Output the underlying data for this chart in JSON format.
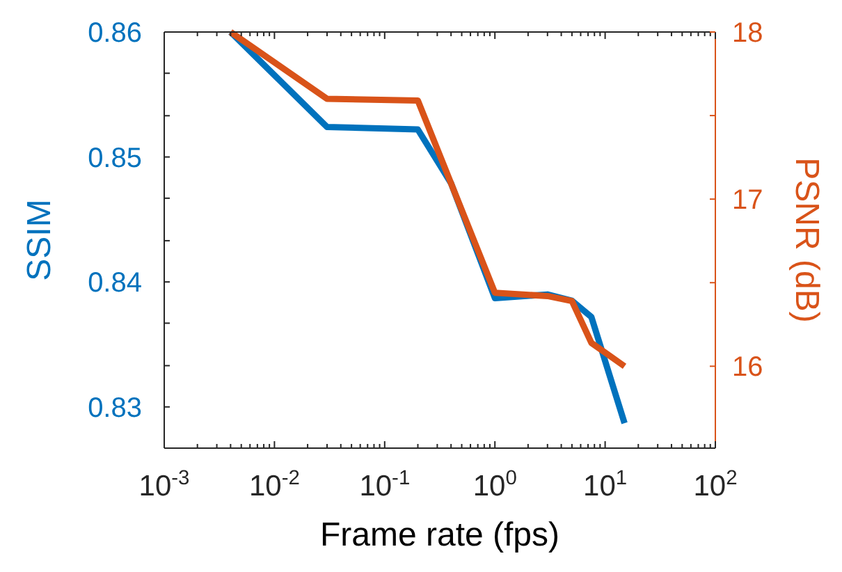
{
  "chart_data": {
    "type": "line",
    "xlabel": "Frame rate (fps)",
    "ylabel": "SSIM",
    "y2label": "PSNR (dB)",
    "log": "x",
    "xlim": [
      0.001,
      100
    ],
    "xticks": [
      {
        "value": 0.001,
        "label": "10$^{-3}$"
      },
      {
        "value": 0.002,
        "label": null
      },
      {
        "value": 0.003,
        "label": null
      },
      {
        "value": 0.004,
        "label": null
      },
      {
        "value": 0.005,
        "label": null
      },
      {
        "value": 0.006,
        "label": null
      },
      {
        "value": 0.007,
        "label": null
      },
      {
        "value": 0.008,
        "label": null
      },
      {
        "value": 0.009,
        "label": null
      },
      {
        "value": 0.01,
        "label": "10$^{-2}$"
      },
      {
        "value": 0.02,
        "label": null
      },
      {
        "value": 0.03,
        "label": null
      },
      {
        "value": 0.04,
        "label": null
      },
      {
        "value": 0.05,
        "label": null
      },
      {
        "value": 0.06,
        "label": null
      },
      {
        "value": 0.07,
        "label": null
      },
      {
        "value": 0.08,
        "label": null
      },
      {
        "value": 0.09,
        "label": null
      },
      {
        "value": 0.1,
        "label": "10$^{-1}$"
      },
      {
        "value": 0.2,
        "label": null
      },
      {
        "value": 0.3,
        "label": null
      },
      {
        "value": 0.4,
        "label": null
      },
      {
        "value": 0.5,
        "label": null
      },
      {
        "value": 0.6,
        "label": null
      },
      {
        "value": 0.7,
        "label": null
      },
      {
        "value": 0.8,
        "label": null
      },
      {
        "value": 0.9,
        "label": null
      },
      {
        "value": 1,
        "label": "10$^{0}$"
      },
      {
        "value": 2,
        "label": null
      },
      {
        "value": 3,
        "label": null
      },
      {
        "value": 4,
        "label": null
      },
      {
        "value": 5,
        "label": null
      },
      {
        "value": 6,
        "label": null
      },
      {
        "value": 7,
        "label": null
      },
      {
        "value": 8,
        "label": null
      },
      {
        "value": 9,
        "label": null
      },
      {
        "value": 10,
        "label": "10$^{1}$"
      },
      {
        "value": 20,
        "label": null
      },
      {
        "value": 30,
        "label": null
      },
      {
        "value": 40,
        "label": null
      },
      {
        "value": 50,
        "label": null
      },
      {
        "value": 60,
        "label": null
      },
      {
        "value": 70,
        "label": null
      },
      {
        "value": 80,
        "label": null
      },
      {
        "value": 90,
        "label": null
      },
      {
        "value": 100,
        "label": "10$^{2}$"
      }
    ],
    "ylim": [
      0.8267,
      0.86
    ],
    "yticks": [
      {
        "value": 0.8267,
        "label": null
      },
      {
        "value": 0.83,
        "label": "0.83"
      },
      {
        "value": 0.8333,
        "label": null
      },
      {
        "value": 0.8367,
        "label": null
      },
      {
        "value": 0.84,
        "label": "0.84"
      },
      {
        "value": 0.8433,
        "label": null
      },
      {
        "value": 0.8467,
        "label": null
      },
      {
        "value": 0.85,
        "label": "0.85"
      },
      {
        "value": 0.8533,
        "label": null
      },
      {
        "value": 0.8567,
        "label": null
      },
      {
        "value": 0.86,
        "label": "0.86"
      }
    ],
    "y2lim": [
      15.51,
      18
    ],
    "y2ticks": [
      {
        "value": 16,
        "label": "16"
      },
      {
        "value": 16.5,
        "label": null
      },
      {
        "value": 17,
        "label": "17"
      },
      {
        "value": 17.5,
        "label": null
      },
      {
        "value": 18,
        "label": "18"
      }
    ],
    "series": [
      {
        "color": "#0072bd",
        "x": [
          0.004,
          0.03,
          0.2,
          0.4,
          1,
          3,
          5,
          7.5,
          15
        ],
        "values": [
          0.86,
          0.8524,
          0.8522,
          0.8479,
          0.8387,
          0.839,
          0.8385,
          0.8372,
          0.8287
        ]
      },
      {
        "color": "#d95319",
        "axis": "y2",
        "x": [
          0.004,
          0.03,
          0.2,
          1,
          3,
          5,
          7.5,
          15
        ],
        "values": [
          18,
          17.6,
          17.59,
          16.44,
          16.42,
          16.39,
          16.14,
          16
        ]
      }
    ]
  }
}
